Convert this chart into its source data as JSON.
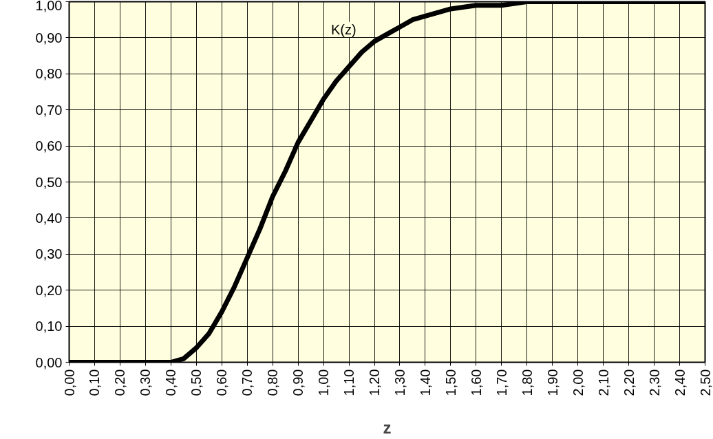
{
  "chart_data": {
    "type": "line",
    "xlabel": "z",
    "x": [
      0,
      0.1,
      0.2,
      0.3,
      0.4,
      0.45,
      0.5,
      0.55,
      0.6,
      0.65,
      0.7,
      0.75,
      0.8,
      0.85,
      0.9,
      0.95,
      1.0,
      1.05,
      1.1,
      1.15,
      1.2,
      1.25,
      1.3,
      1.35,
      1.4,
      1.45,
      1.5,
      1.6,
      1.7,
      1.8,
      1.9,
      2.0,
      2.5
    ],
    "series": [
      {
        "name": "K(z)",
        "color": "#000000",
        "values": [
          0,
          0,
          0,
          0,
          0,
          0.01,
          0.04,
          0.08,
          0.14,
          0.21,
          0.29,
          0.37,
          0.46,
          0.53,
          0.61,
          0.67,
          0.73,
          0.78,
          0.82,
          0.86,
          0.89,
          0.91,
          0.93,
          0.95,
          0.96,
          0.97,
          0.98,
          0.99,
          0.99,
          1.0,
          1.0,
          1.0,
          1.0
        ]
      }
    ],
    "xlim": [
      0,
      2.5
    ],
    "ylim": [
      0,
      1
    ],
    "xticks": [
      {
        "value": 0,
        "label": "0,00"
      },
      {
        "value": 0.1,
        "label": "0,10"
      },
      {
        "value": 0.2,
        "label": "0,20"
      },
      {
        "value": 0.3,
        "label": "0,30"
      },
      {
        "value": 0.4,
        "label": "0,40"
      },
      {
        "value": 0.5,
        "label": "0,50"
      },
      {
        "value": 0.6,
        "label": "0,60"
      },
      {
        "value": 0.7,
        "label": "0,70"
      },
      {
        "value": 0.8,
        "label": "0,80"
      },
      {
        "value": 0.9,
        "label": "0,90"
      },
      {
        "value": 1.0,
        "label": "1,00"
      },
      {
        "value": 1.1,
        "label": "1,10"
      },
      {
        "value": 1.2,
        "label": "1,20"
      },
      {
        "value": 1.3,
        "label": "1,30"
      },
      {
        "value": 1.4,
        "label": "1,40"
      },
      {
        "value": 1.5,
        "label": "1,50"
      },
      {
        "value": 1.6,
        "label": "1,60"
      },
      {
        "value": 1.7,
        "label": "1,70"
      },
      {
        "value": 1.8,
        "label": "1,80"
      },
      {
        "value": 1.9,
        "label": "1,90"
      },
      {
        "value": 2.0,
        "label": "2,00"
      },
      {
        "value": 2.1,
        "label": "2,10"
      },
      {
        "value": 2.2,
        "label": "2,20"
      },
      {
        "value": 2.3,
        "label": "2,30"
      },
      {
        "value": 2.4,
        "label": "2,40"
      },
      {
        "value": 2.5,
        "label": "2,50"
      }
    ],
    "yticks": [
      {
        "value": 0,
        "label": "0,00"
      },
      {
        "value": 0.1,
        "label": "0,10"
      },
      {
        "value": 0.2,
        "label": "0,20"
      },
      {
        "value": 0.3,
        "label": "0,30"
      },
      {
        "value": 0.4,
        "label": "0,40"
      },
      {
        "value": 0.5,
        "label": "0,50"
      },
      {
        "value": 0.6,
        "label": "0,60"
      },
      {
        "value": 0.7,
        "label": "0,70"
      },
      {
        "value": 0.8,
        "label": "0,80"
      },
      {
        "value": 0.9,
        "label": "0,90"
      },
      {
        "value": 1.0,
        "label": "1,00"
      }
    ],
    "grid": true,
    "marker": "none",
    "line_style": "solid"
  }
}
